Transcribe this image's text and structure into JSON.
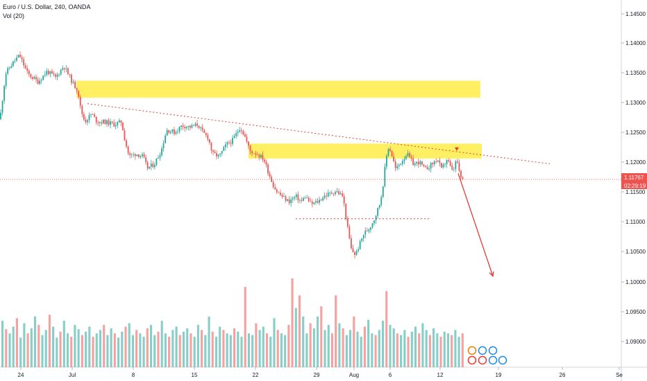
{
  "header": {
    "symbol_line": "Euro / U.S. Dollar, 240, OANDA",
    "volume_label": "Vol (20)"
  },
  "price_tag": {
    "value": "1.11767",
    "countdown": "02:29:19",
    "color": "#ef5350"
  },
  "colors": {
    "up": "#26a69a",
    "down": "#ef5350",
    "zone": "#ffeb3b",
    "annotation": "#e53935"
  },
  "chart_data": {
    "type": "candlestick",
    "title": "Euro / U.S. Dollar, 240, OANDA",
    "xlabel": "",
    "ylabel": "",
    "y_ticks": [
      "1.14500",
      "1.14000",
      "1.13500",
      "1.13000",
      "1.12500",
      "1.12000",
      "1.11500",
      "1.11000",
      "1.10500",
      "1.10000",
      "1.09500",
      "1.09000"
    ],
    "x_ticks": [
      "24",
      "Jul",
      "8",
      "15",
      "22",
      "29",
      "Aug",
      "6",
      "12",
      "19",
      "26",
      "Se"
    ],
    "ylim": [
      1.0862,
      1.1485
    ],
    "last_price": 1.11767,
    "path": [
      [
        0,
        1.129
      ],
      [
        8,
        1.1375
      ],
      [
        18,
        1.1395
      ],
      [
        28,
        1.141
      ],
      [
        40,
        1.1375
      ],
      [
        55,
        1.136
      ],
      [
        68,
        1.138
      ],
      [
        80,
        1.1368
      ],
      [
        92,
        1.139
      ],
      [
        100,
        1.137
      ],
      [
        106,
        1.1355
      ],
      [
        112,
        1.1345
      ],
      [
        116,
        1.131
      ],
      [
        122,
        1.1285
      ],
      [
        132,
        1.13
      ],
      [
        140,
        1.1285
      ],
      [
        150,
        1.1285
      ],
      [
        165,
        1.128
      ],
      [
        175,
        1.1285
      ],
      [
        180,
        1.125
      ],
      [
        186,
        1.122
      ],
      [
        196,
        1.1225
      ],
      [
        206,
        1.122
      ],
      [
        212,
        1.1198
      ],
      [
        222,
        1.1205
      ],
      [
        232,
        1.123
      ],
      [
        240,
        1.127
      ],
      [
        252,
        1.1265
      ],
      [
        262,
        1.1278
      ],
      [
        275,
        1.1275
      ],
      [
        285,
        1.128
      ],
      [
        292,
        1.1265
      ],
      [
        300,
        1.1255
      ],
      [
        306,
        1.1225
      ],
      [
        316,
        1.122
      ],
      [
        326,
        1.1242
      ],
      [
        335,
        1.125
      ],
      [
        346,
        1.1275
      ],
      [
        352,
        1.126
      ],
      [
        360,
        1.123
      ],
      [
        370,
        1.1225
      ],
      [
        380,
        1.1215
      ],
      [
        388,
        1.1185
      ],
      [
        394,
        1.1165
      ],
      [
        398,
        1.1155
      ],
      [
        406,
        1.1145
      ],
      [
        416,
        1.1135
      ],
      [
        426,
        1.1145
      ],
      [
        434,
        1.1135
      ],
      [
        440,
        1.1145
      ],
      [
        448,
        1.113
      ],
      [
        458,
        1.1135
      ],
      [
        466,
        1.1145
      ],
      [
        475,
        1.115
      ],
      [
        484,
        1.1155
      ],
      [
        494,
        1.1145
      ],
      [
        500,
        1.109
      ],
      [
        506,
        1.1045
      ],
      [
        512,
        1.1035
      ],
      [
        518,
        1.1055
      ],
      [
        524,
        1.1075
      ],
      [
        532,
        1.1085
      ],
      [
        540,
        1.1105
      ],
      [
        548,
        1.1135
      ],
      [
        552,
        1.117
      ],
      [
        556,
        1.1215
      ],
      [
        560,
        1.124
      ],
      [
        565,
        1.122
      ],
      [
        570,
        1.1195
      ],
      [
        578,
        1.121
      ],
      [
        586,
        1.1225
      ],
      [
        596,
        1.1205
      ],
      [
        604,
        1.121
      ],
      [
        612,
        1.1195
      ],
      [
        622,
        1.1205
      ],
      [
        630,
        1.1215
      ],
      [
        636,
        1.1195
      ],
      [
        644,
        1.1215
      ],
      [
        652,
        1.119
      ],
      [
        658,
        1.1215
      ],
      [
        662,
        1.1185
      ],
      [
        666,
        1.1176
      ],
      [
        670,
        1.1177
      ]
    ],
    "volume": [
      55,
      45,
      40,
      48,
      58,
      35,
      52,
      40,
      46,
      60,
      50,
      38,
      44,
      62,
      48,
      35,
      42,
      55,
      40,
      36,
      50,
      45,
      38,
      42,
      48,
      36,
      40,
      44,
      50,
      38,
      46,
      40,
      35,
      42,
      48,
      52,
      38,
      44,
      40,
      36,
      46,
      50,
      38,
      42,
      55,
      40,
      36,
      44,
      48,
      38,
      42,
      46,
      40,
      36,
      50,
      44,
      38,
      60,
      42,
      36,
      48,
      44,
      40,
      38,
      46,
      42,
      36,
      95,
      40,
      38,
      52,
      44,
      48,
      40,
      36,
      58,
      44,
      40,
      38,
      50,
      105,
      70,
      85,
      60,
      40,
      52,
      46,
      60,
      72,
      44,
      50,
      40,
      85,
      52,
      46,
      38,
      44,
      60,
      42,
      36,
      48,
      56,
      40,
      38,
      44,
      55,
      90,
      50,
      46,
      40,
      38,
      44,
      36,
      42,
      48,
      40,
      52,
      44,
      38,
      46,
      40,
      36,
      42,
      40,
      38,
      44,
      36,
      40
    ],
    "zones": [
      {
        "x1": 110,
        "x2": 692,
        "top": 1.1362,
        "bottom": 1.133
      },
      {
        "x1": 358,
        "x2": 694,
        "top": 1.1244,
        "bottom": 1.1216
      }
    ],
    "trendline": [
      [
        126,
        1.1319
      ],
      [
        792,
        1.1206
      ]
    ],
    "support_line": [
      [
        426,
        1.1103
      ],
      [
        620,
        1.1103
      ]
    ],
    "projection_arrow": [
      [
        660,
        1.1188
      ],
      [
        710,
        1.0995
      ]
    ],
    "down_marker": [
      658,
      1.1233
    ]
  }
}
